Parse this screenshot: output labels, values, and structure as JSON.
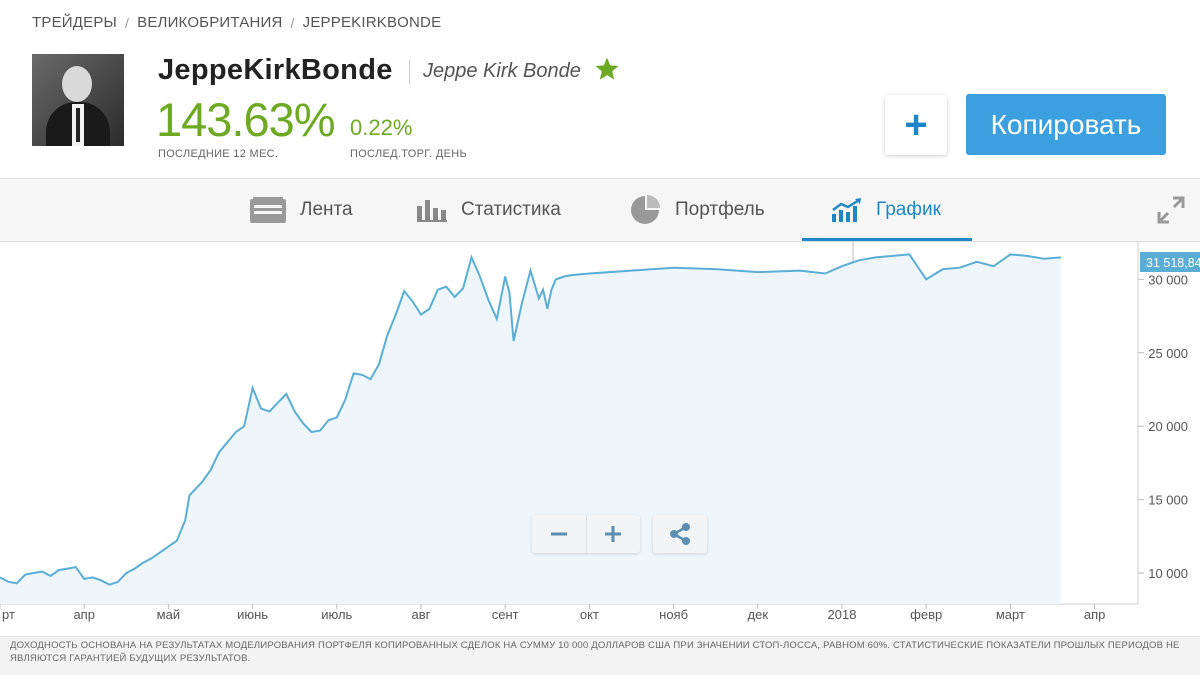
{
  "breadcrumb": [
    "ТРЕЙДЕРЫ",
    "ВЕЛИКОБРИТАНИЯ",
    "JEPPEKIRKBONDE"
  ],
  "profile": {
    "username": "JeppeKirkBonde",
    "real_name": "Jeppe Kirk Bonde",
    "gain": "143.63%",
    "gain_label": "ПОСЛЕДНИЕ 12 МЕС.",
    "day_gain": "0.22%",
    "day_label": "ПОСЛЕД.ТОРГ. ДЕНЬ"
  },
  "actions": {
    "add_symbol": "+",
    "copy_label": "Копировать"
  },
  "tabs": [
    {
      "label": "Лента",
      "icon": "feed-icon"
    },
    {
      "label": "Статистика",
      "icon": "bar-chart-icon"
    },
    {
      "label": "Портфель",
      "icon": "pie-chart-icon"
    },
    {
      "label": "График",
      "icon": "line-chart-icon",
      "active": true
    }
  ],
  "colors": {
    "accent": "#1f87c7",
    "gain": "#6ea923",
    "line": "#5aaed6",
    "area": "#eef6fc",
    "copy_button": "#3b9fe0"
  },
  "chart_data": {
    "type": "area",
    "current_value_label": "31 518,84",
    "ylim": [
      8000,
      32500
    ],
    "yticks": [
      10000,
      15000,
      20000,
      25000,
      30000
    ],
    "ytick_labels": [
      "10 000",
      "15 000",
      "20 000",
      "25 000",
      "30 000"
    ],
    "xtick_labels": [
      "рт",
      "апр",
      "май",
      "июнь",
      "июль",
      "авг",
      "сент",
      "окт",
      "нояб",
      "дек",
      "2018",
      "февр",
      "март",
      "апр"
    ],
    "x_start": 0,
    "x_end": 12.6,
    "series": [
      {
        "x": [
          -0.05,
          0.1,
          0.2,
          0.3,
          0.4,
          0.5,
          0.6,
          0.7,
          0.8,
          0.9,
          1.0,
          1.1,
          1.2,
          1.3,
          1.4,
          1.5,
          1.6,
          1.7,
          1.8,
          1.9,
          2.0,
          2.1,
          2.2,
          2.25,
          2.3,
          2.4,
          2.5,
          2.6,
          2.7,
          2.8,
          2.9,
          3.0,
          3.1,
          3.2,
          3.3,
          3.4,
          3.5,
          3.6,
          3.7,
          3.8,
          3.9,
          4.0,
          4.1,
          4.2,
          4.3,
          4.4,
          4.5,
          4.6,
          4.7,
          4.8,
          4.9,
          5.0,
          5.1,
          5.2,
          5.3,
          5.4,
          5.5,
          5.6,
          5.7,
          5.8,
          5.9,
          6.0,
          6.05,
          6.1,
          6.2,
          6.3,
          6.4,
          6.45,
          6.5,
          6.55,
          6.6,
          6.7,
          6.8,
          6.9,
          7.0,
          7.5,
          8.0,
          8.5,
          9.0,
          9.5,
          9.8,
          10.0,
          10.2,
          10.4,
          10.6,
          10.8,
          11.0,
          11.2,
          11.4,
          11.6,
          11.8,
          12.0,
          12.2,
          12.4,
          12.6
        ],
        "y": [
          9700,
          9400,
          9300,
          9900,
          10000,
          10100,
          9800,
          10200,
          10300,
          10400,
          9600,
          9700,
          9500,
          9200,
          9400,
          10000,
          10300,
          10700,
          11000,
          11400,
          11800,
          12200,
          13600,
          15300,
          15600,
          16200,
          17000,
          18200,
          18900,
          19600,
          20000,
          22600,
          21200,
          21000,
          21600,
          22200,
          21000,
          20200,
          19600,
          19700,
          20400,
          20600,
          21800,
          23600,
          23500,
          23200,
          24200,
          26200,
          27600,
          29200,
          28500,
          27600,
          28000,
          29300,
          29500,
          28800,
          29400,
          31500,
          30200,
          28600,
          27300,
          30200,
          29100,
          25800,
          28400,
          30600,
          28700,
          29300,
          28000,
          29300,
          30000,
          30200,
          30300,
          30350,
          30400,
          30600,
          30800,
          30700,
          30500,
          30600,
          30400,
          30900,
          31300,
          31500,
          31600,
          31700,
          30000,
          30700,
          30800,
          31200,
          30900,
          31700,
          31600,
          31400,
          31500
        ]
      }
    ]
  },
  "footer": {
    "disclaimer": "ДОХОДНОСТЬ ОСНОВАНА НА РЕЗУЛЬТАТАХ МОДЕЛИРОВАНИЯ ПОРТФЕЛЯ КОПИРОВАННЫХ СДЕЛОК НА СУММУ 10 000 ДОЛЛАРОВ США ПРИ ЗНАЧЕНИИ СТОП-ЛОССА, РАВНОМ 60%. СТАТИСТИЧЕСКИЕ ПОКАЗАТЕЛИ ПРОШЛЫХ ПЕРИОДОВ НЕ ЯВЛЯЮТСЯ ГАРАНТИЕЙ БУДУЩИХ РЕЗУЛЬТАТОВ."
  }
}
